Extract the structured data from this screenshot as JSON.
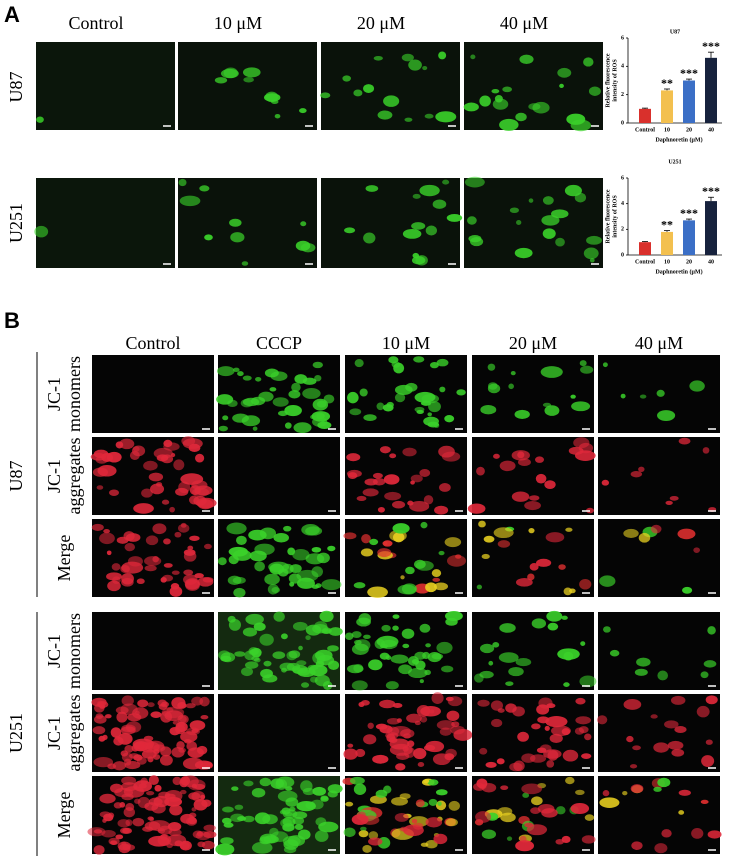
{
  "panel_a": {
    "label": "A",
    "columns": [
      "Control",
      "10 μM",
      "20 μM",
      "40 μM"
    ],
    "rows": [
      "U87",
      "U251"
    ]
  },
  "chart_data": [
    {
      "type": "bar",
      "title": "U87",
      "categories": [
        "Control",
        "10",
        "20",
        "40"
      ],
      "values": [
        1,
        2.3,
        3.0,
        4.6
      ],
      "errors": [
        0.05,
        0.1,
        0.1,
        0.4
      ],
      "colors": [
        "#d9302c",
        "#f3c04f",
        "#3b6fc6",
        "#17223d"
      ],
      "annotations": [
        "**",
        "***",
        "***"
      ],
      "ylabel": [
        "Relative fluorescence",
        "intensity of ROS"
      ],
      "xlabel": "Daphnoretin (μM)",
      "ylim": [
        0,
        6
      ],
      "yticks": [
        0,
        2,
        4,
        6
      ]
    },
    {
      "type": "bar",
      "title": "U251",
      "categories": [
        "Control",
        "10",
        "20",
        "40"
      ],
      "values": [
        1,
        1.8,
        2.7,
        4.2
      ],
      "errors": [
        0.05,
        0.1,
        0.1,
        0.3
      ],
      "colors": [
        "#d9302c",
        "#f3c04f",
        "#3b6fc6",
        "#17223d"
      ],
      "annotations": [
        "**",
        "***",
        "***"
      ],
      "ylabel": [
        "Relative fluorescence",
        "intensity of ROS"
      ],
      "xlabel": "Daphnoretin (μM)",
      "ylim": [
        0,
        6
      ],
      "yticks": [
        0,
        2,
        4,
        6
      ]
    }
  ],
  "panel_b": {
    "label": "B",
    "columns": [
      "Control",
      "CCCP",
      "10 μM",
      "20 μM",
      "40 μM"
    ],
    "groups": [
      {
        "name": "U87",
        "rows": [
          [
            "JC-1",
            "monomers"
          ],
          [
            "JC-1",
            "aggregates"
          ],
          [
            "Merge"
          ]
        ]
      },
      {
        "name": "U251",
        "rows": [
          [
            "JC-1",
            "monomers"
          ],
          [
            "JC-1",
            "aggregates"
          ],
          [
            "Merge"
          ]
        ]
      }
    ]
  }
}
